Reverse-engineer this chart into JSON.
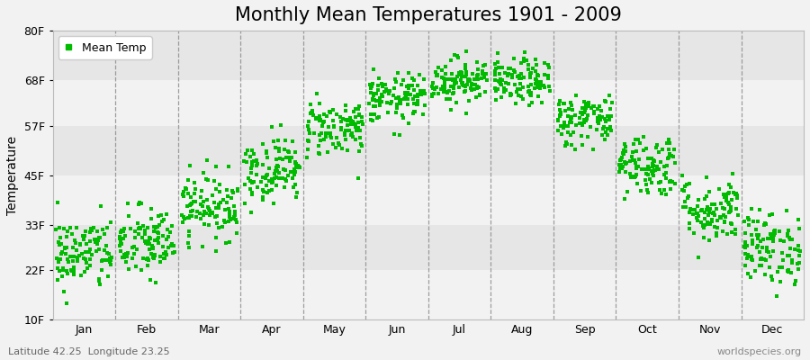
{
  "title": "Monthly Mean Temperatures 1901 - 2009",
  "ylabel": "Temperature",
  "xlabel_bottom_left": "Latitude 42.25  Longitude 23.25",
  "xlabel_bottom_right": "worldspecies.org",
  "legend_label": "Mean Temp",
  "ytick_labels": [
    "10F",
    "22F",
    "33F",
    "45F",
    "57F",
    "68F",
    "80F"
  ],
  "ytick_values": [
    10,
    22,
    33,
    45,
    57,
    68,
    80
  ],
  "ylim": [
    10,
    80
  ],
  "month_names": [
    "Jan",
    "Feb",
    "Mar",
    "Apr",
    "May",
    "Jun",
    "Jul",
    "Aug",
    "Sep",
    "Oct",
    "Nov",
    "Dec"
  ],
  "dot_color": "#00bb00",
  "dot_size": 7,
  "bg_light": "#f2f2f2",
  "bg_dark": "#e6e6e6",
  "monthly_means": [
    26.0,
    28.5,
    37.5,
    46.5,
    56.5,
    63.5,
    68.0,
    67.5,
    58.5,
    47.5,
    36.5,
    27.5
  ],
  "monthly_stds": [
    4.5,
    4.5,
    4.0,
    4.0,
    3.5,
    3.0,
    2.8,
    2.8,
    3.2,
    3.8,
    4.0,
    4.5
  ],
  "n_years": 109,
  "title_fontsize": 15,
  "axis_fontsize": 10,
  "legend_fontsize": 9,
  "tick_fontsize": 9
}
